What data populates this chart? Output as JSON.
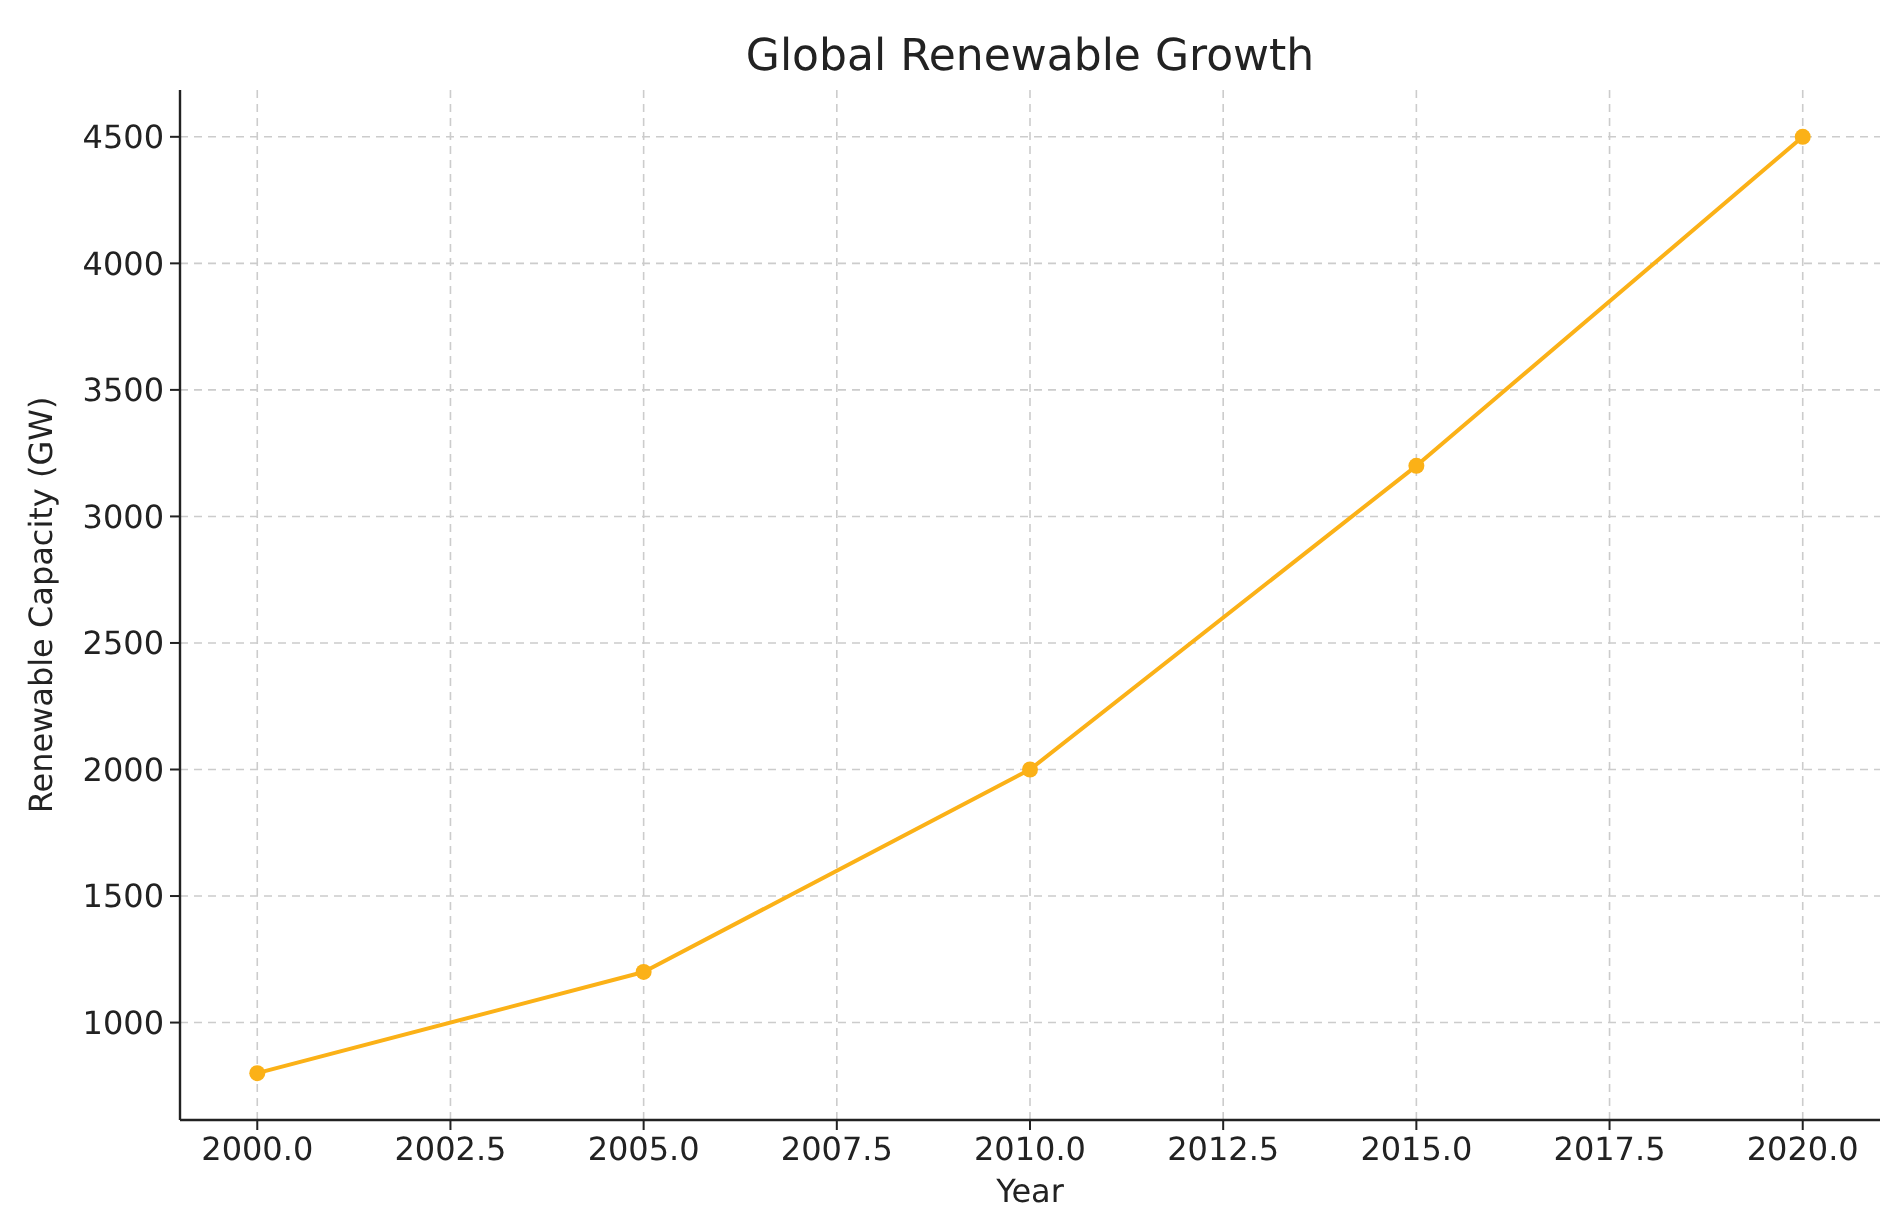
{
  "chart_data": {
    "type": "line",
    "title": "Global Renewable Growth",
    "xlabel": "Year",
    "ylabel": "Renewable Capacity (GW)",
    "x": [
      2000,
      2005,
      2010,
      2015,
      2020
    ],
    "series": [
      {
        "color": "#fbb117",
        "values": [
          800,
          1200,
          2000,
          3200,
          4500
        ]
      }
    ],
    "xlim": [
      1999,
      2021
    ],
    "xticks": [
      {
        "value": 2000,
        "label": "2000.0"
      },
      {
        "value": 2002.5,
        "label": "2002.5"
      },
      {
        "value": 2005,
        "label": "2005.0"
      },
      {
        "value": 2007.5,
        "label": "2007.5"
      },
      {
        "value": 2010,
        "label": "2010.0"
      },
      {
        "value": 2012.5,
        "label": "2012.5"
      },
      {
        "value": 2015,
        "label": "2015.0"
      },
      {
        "value": 2017.5,
        "label": "2017.5"
      },
      {
        "value": 2020,
        "label": "2020.0"
      }
    ],
    "ylim": [
      615,
      4685
    ],
    "yticks": [
      1000,
      1500,
      2000,
      2500,
      3000,
      3500,
      4000,
      4500
    ],
    "grid": true,
    "marker": "circle",
    "line_style": "solid"
  }
}
